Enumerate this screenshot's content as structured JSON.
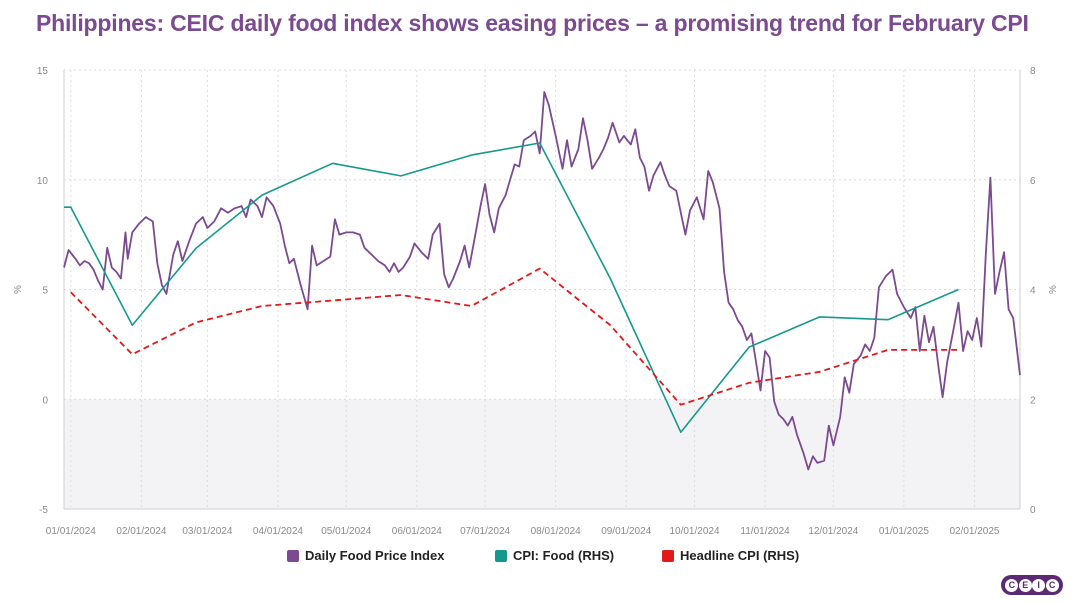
{
  "header": {
    "title": "Philippines: CEIC daily food index shows easing prices – a promising trend for February CPI"
  },
  "colors": {
    "daily": "#7b4a91",
    "food": "#15998e",
    "headline": "#e31818",
    "title": "#7b4a91",
    "negative_shade": "#f3f3f6",
    "grid": "#dcdcdc"
  },
  "chart_data": {
    "type": "line",
    "title": "Philippines: CEIC daily food index shows easing prices – a promising trend for February CPI",
    "x_axis": {
      "ticks": [
        "01/01/2024",
        "02/01/2024",
        "03/01/2024",
        "04/01/2024",
        "05/01/2024",
        "06/01/2024",
        "07/01/2024",
        "08/01/2024",
        "09/01/2024",
        "10/01/2024",
        "11/01/2024",
        "12/01/2024",
        "01/01/2025",
        "02/01/2025"
      ],
      "range": [
        "2023-12-29",
        "2025-02-21"
      ]
    },
    "y_left": {
      "label": "%",
      "range": [
        -5,
        15
      ],
      "ticks": [
        -5,
        0,
        5,
        10,
        15
      ]
    },
    "y_right": {
      "label": "%",
      "range": [
        0,
        8
      ],
      "ticks": [
        0,
        2,
        4,
        6,
        8
      ]
    },
    "grid": true,
    "legend_position": "bottom",
    "series": [
      {
        "name": "Daily Food Price Index",
        "axis": "left",
        "style": "solid",
        "points": [
          [
            "2023-12-29",
            6.0
          ],
          [
            "2023-12-31",
            6.8
          ],
          [
            "2024-01-03",
            6.4
          ],
          [
            "2024-01-05",
            6.1
          ],
          [
            "2024-01-07",
            6.3
          ],
          [
            "2024-01-09",
            6.2
          ],
          [
            "2024-01-11",
            5.9
          ],
          [
            "2024-01-13",
            5.4
          ],
          [
            "2024-01-15",
            5.0
          ],
          [
            "2024-01-17",
            6.9
          ],
          [
            "2024-01-19",
            6.0
          ],
          [
            "2024-01-21",
            5.8
          ],
          [
            "2024-01-23",
            5.5
          ],
          [
            "2024-01-25",
            7.6
          ],
          [
            "2024-01-26",
            6.4
          ],
          [
            "2024-01-28",
            7.6
          ],
          [
            "2024-01-31",
            8.0
          ],
          [
            "2024-02-03",
            8.3
          ],
          [
            "2024-02-06",
            8.1
          ],
          [
            "2024-02-08",
            6.2
          ],
          [
            "2024-02-10",
            5.2
          ],
          [
            "2024-02-12",
            4.8
          ],
          [
            "2024-02-15",
            6.6
          ],
          [
            "2024-02-17",
            7.2
          ],
          [
            "2024-02-19",
            6.3
          ],
          [
            "2024-02-22",
            7.2
          ],
          [
            "2024-02-25",
            8.0
          ],
          [
            "2024-02-28",
            8.3
          ],
          [
            "2024-03-01",
            7.8
          ],
          [
            "2024-03-04",
            8.1
          ],
          [
            "2024-03-07",
            8.7
          ],
          [
            "2024-03-10",
            8.5
          ],
          [
            "2024-03-13",
            8.7
          ],
          [
            "2024-03-16",
            8.8
          ],
          [
            "2024-03-18",
            8.3
          ],
          [
            "2024-03-20",
            9.1
          ],
          [
            "2024-03-23",
            8.8
          ],
          [
            "2024-03-25",
            8.3
          ],
          [
            "2024-03-27",
            9.2
          ],
          [
            "2024-03-30",
            8.8
          ],
          [
            "2024-04-02",
            8.0
          ],
          [
            "2024-04-04",
            7.0
          ],
          [
            "2024-04-06",
            6.2
          ],
          [
            "2024-04-08",
            6.4
          ],
          [
            "2024-04-11",
            5.2
          ],
          [
            "2024-04-14",
            4.1
          ],
          [
            "2024-04-16",
            7.0
          ],
          [
            "2024-04-18",
            6.1
          ],
          [
            "2024-04-21",
            6.3
          ],
          [
            "2024-04-24",
            6.5
          ],
          [
            "2024-04-26",
            8.2
          ],
          [
            "2024-04-28",
            7.5
          ],
          [
            "2024-05-01",
            7.6
          ],
          [
            "2024-05-04",
            7.6
          ],
          [
            "2024-05-07",
            7.5
          ],
          [
            "2024-05-09",
            6.9
          ],
          [
            "2024-05-12",
            6.6
          ],
          [
            "2024-05-15",
            6.3
          ],
          [
            "2024-05-18",
            6.1
          ],
          [
            "2024-05-20",
            5.8
          ],
          [
            "2024-05-22",
            6.2
          ],
          [
            "2024-05-24",
            5.8
          ],
          [
            "2024-05-26",
            6.0
          ],
          [
            "2024-05-29",
            6.5
          ],
          [
            "2024-05-31",
            7.1
          ],
          [
            "2024-06-03",
            6.7
          ],
          [
            "2024-06-06",
            6.4
          ],
          [
            "2024-06-08",
            7.5
          ],
          [
            "2024-06-11",
            8.0
          ],
          [
            "2024-06-13",
            5.7
          ],
          [
            "2024-06-15",
            5.1
          ],
          [
            "2024-06-17",
            5.5
          ],
          [
            "2024-06-20",
            6.3
          ],
          [
            "2024-06-22",
            7.0
          ],
          [
            "2024-06-24",
            6.0
          ],
          [
            "2024-06-26",
            7.1
          ],
          [
            "2024-06-29",
            8.8
          ],
          [
            "2024-07-01",
            9.8
          ],
          [
            "2024-07-03",
            8.4
          ],
          [
            "2024-07-05",
            7.6
          ],
          [
            "2024-07-07",
            8.7
          ],
          [
            "2024-07-10",
            9.3
          ],
          [
            "2024-07-12",
            10.0
          ],
          [
            "2024-07-14",
            10.7
          ],
          [
            "2024-07-16",
            10.6
          ],
          [
            "2024-07-18",
            11.8
          ],
          [
            "2024-07-21",
            12.0
          ],
          [
            "2024-07-23",
            12.2
          ],
          [
            "2024-07-25",
            11.2
          ],
          [
            "2024-07-27",
            14.0
          ],
          [
            "2024-07-29",
            13.4
          ],
          [
            "2024-08-01",
            12.0
          ],
          [
            "2024-08-04",
            10.5
          ],
          [
            "2024-08-06",
            11.8
          ],
          [
            "2024-08-08",
            10.6
          ],
          [
            "2024-08-11",
            11.4
          ],
          [
            "2024-08-13",
            12.8
          ],
          [
            "2024-08-15",
            11.8
          ],
          [
            "2024-08-17",
            10.5
          ],
          [
            "2024-08-20",
            11.0
          ],
          [
            "2024-08-22",
            11.4
          ],
          [
            "2024-08-24",
            11.9
          ],
          [
            "2024-08-26",
            12.6
          ],
          [
            "2024-08-29",
            11.7
          ],
          [
            "2024-08-31",
            12.0
          ],
          [
            "2024-09-03",
            11.6
          ],
          [
            "2024-09-05",
            12.3
          ],
          [
            "2024-09-07",
            11.0
          ],
          [
            "2024-09-09",
            10.6
          ],
          [
            "2024-09-11",
            9.5
          ],
          [
            "2024-09-13",
            10.2
          ],
          [
            "2024-09-16",
            10.8
          ],
          [
            "2024-09-18",
            10.2
          ],
          [
            "2024-09-20",
            9.7
          ],
          [
            "2024-09-23",
            9.5
          ],
          [
            "2024-09-25",
            8.5
          ],
          [
            "2024-09-27",
            7.5
          ],
          [
            "2024-09-29",
            8.6
          ],
          [
            "2024-10-02",
            9.2
          ],
          [
            "2024-10-05",
            8.2
          ],
          [
            "2024-10-07",
            10.4
          ],
          [
            "2024-10-09",
            9.9
          ],
          [
            "2024-10-12",
            8.7
          ],
          [
            "2024-10-14",
            5.8
          ],
          [
            "2024-10-16",
            4.4
          ],
          [
            "2024-10-18",
            4.1
          ],
          [
            "2024-10-20",
            3.6
          ],
          [
            "2024-10-22",
            3.3
          ],
          [
            "2024-10-24",
            2.7
          ],
          [
            "2024-10-26",
            3.0
          ],
          [
            "2024-10-28",
            1.7
          ],
          [
            "2024-10-30",
            0.4
          ],
          [
            "2024-11-01",
            2.2
          ],
          [
            "2024-11-03",
            1.9
          ],
          [
            "2024-11-05",
            -0.1
          ],
          [
            "2024-11-07",
            -0.7
          ],
          [
            "2024-11-09",
            -0.9
          ],
          [
            "2024-11-11",
            -1.2
          ],
          [
            "2024-11-13",
            -0.8
          ],
          [
            "2024-11-15",
            -1.6
          ],
          [
            "2024-11-18",
            -2.5
          ],
          [
            "2024-11-20",
            -3.2
          ],
          [
            "2024-11-22",
            -2.6
          ],
          [
            "2024-11-24",
            -2.9
          ],
          [
            "2024-11-27",
            -2.8
          ],
          [
            "2024-11-29",
            -1.2
          ],
          [
            "2024-12-01",
            -2.1
          ],
          [
            "2024-12-04",
            -0.8
          ],
          [
            "2024-12-06",
            1.0
          ],
          [
            "2024-12-08",
            0.3
          ],
          [
            "2024-12-10",
            1.6
          ],
          [
            "2024-12-13",
            2.0
          ],
          [
            "2024-12-15",
            2.5
          ],
          [
            "2024-12-17",
            2.2
          ],
          [
            "2024-12-19",
            2.8
          ],
          [
            "2024-12-21",
            5.1
          ],
          [
            "2024-12-24",
            5.6
          ],
          [
            "2024-12-27",
            5.9
          ],
          [
            "2024-12-29",
            4.8
          ],
          [
            "2025-01-01",
            4.2
          ],
          [
            "2025-01-04",
            3.7
          ],
          [
            "2025-01-06",
            4.2
          ],
          [
            "2025-01-08",
            2.2
          ],
          [
            "2025-01-10",
            3.8
          ],
          [
            "2025-01-12",
            2.6
          ],
          [
            "2025-01-14",
            3.3
          ],
          [
            "2025-01-16",
            1.6
          ],
          [
            "2025-01-18",
            0.1
          ],
          [
            "2025-01-20",
            1.7
          ],
          [
            "2025-01-23",
            3.3
          ],
          [
            "2025-01-25",
            4.4
          ],
          [
            "2025-01-27",
            2.2
          ],
          [
            "2025-01-29",
            3.1
          ],
          [
            "2025-01-31",
            2.7
          ],
          [
            "2025-02-02",
            3.7
          ],
          [
            "2025-02-04",
            2.4
          ],
          [
            "2025-02-06",
            6.7
          ],
          [
            "2025-02-08",
            10.1
          ],
          [
            "2025-02-10",
            4.8
          ],
          [
            "2025-02-12",
            5.8
          ],
          [
            "2025-02-14",
            6.7
          ],
          [
            "2025-02-16",
            4.1
          ],
          [
            "2025-02-18",
            3.7
          ],
          [
            "2025-02-21",
            1.1
          ]
        ]
      },
      {
        "name": "CPI: Food (RHS)",
        "axis": "right",
        "style": "solid",
        "points": [
          [
            "2023-12-29",
            5.5
          ],
          [
            "2024-01-01",
            5.5
          ],
          [
            "2024-01-28",
            3.35
          ],
          [
            "2024-02-25",
            4.75
          ],
          [
            "2024-03-25",
            5.72
          ],
          [
            "2024-04-25",
            6.3
          ],
          [
            "2024-05-25",
            6.07
          ],
          [
            "2024-06-25",
            6.45
          ],
          [
            "2024-07-25",
            6.67
          ],
          [
            "2024-08-25",
            4.2
          ],
          [
            "2024-09-25",
            1.4
          ],
          [
            "2024-10-25",
            2.95
          ],
          [
            "2024-11-25",
            3.5
          ],
          [
            "2024-12-25",
            3.45
          ],
          [
            "2025-01-25",
            4.0
          ]
        ]
      },
      {
        "name": "Headline CPI (RHS)",
        "axis": "right",
        "style": "dashed",
        "points": [
          [
            "2024-01-01",
            3.95
          ],
          [
            "2024-01-28",
            2.82
          ],
          [
            "2024-02-25",
            3.4
          ],
          [
            "2024-03-25",
            3.7
          ],
          [
            "2024-04-25",
            3.8
          ],
          [
            "2024-05-25",
            3.9
          ],
          [
            "2024-06-25",
            3.7
          ],
          [
            "2024-07-25",
            4.38
          ],
          [
            "2024-08-25",
            3.35
          ],
          [
            "2024-09-25",
            1.9
          ],
          [
            "2024-10-25",
            2.3
          ],
          [
            "2024-11-25",
            2.5
          ],
          [
            "2024-12-25",
            2.9
          ],
          [
            "2025-01-25",
            2.9
          ]
        ]
      }
    ]
  },
  "legend": {
    "items": [
      {
        "label": "Daily Food Price Index"
      },
      {
        "label": "CPI: Food (RHS)"
      },
      {
        "label": "Headline CPI (RHS)"
      }
    ]
  },
  "logo": {
    "letters": [
      "C",
      "E",
      "I",
      "C"
    ]
  }
}
